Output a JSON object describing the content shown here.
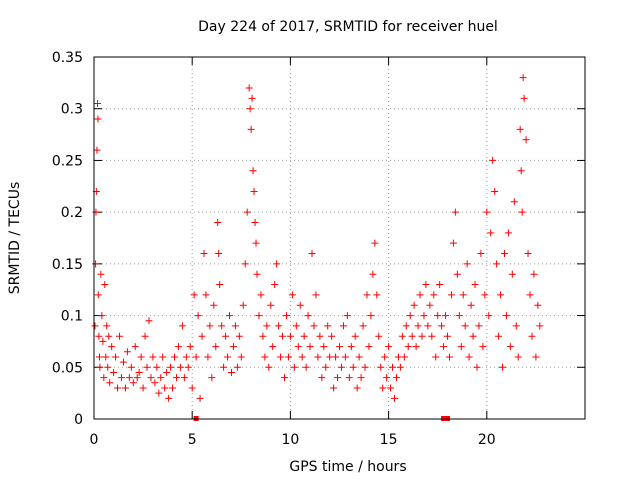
{
  "chart_data": {
    "type": "scatter",
    "title": "Day 224 of 2017, SRMTID for receiver huel",
    "xlabel": "GPS time / hours",
    "ylabel": "SRMTID / TECUs",
    "xlim": [
      0,
      25
    ],
    "ylim": [
      0,
      0.35
    ],
    "x_ticks": [
      0,
      5,
      10,
      15,
      20
    ],
    "x_tick_labels": [
      "0",
      "5",
      "10",
      "15",
      "20"
    ],
    "y_ticks": [
      0,
      0.05,
      0.1,
      0.15,
      0.2,
      0.25,
      0.3,
      0.35
    ],
    "y_tick_labels": [
      "0",
      "0.05",
      "0.1",
      "0.15",
      "0.2",
      "0.25",
      "0.3",
      "0.35"
    ],
    "grid": true,
    "marker": "+",
    "color": "#ff0000",
    "series": [
      {
        "name": "SRMTID",
        "points": [
          [
            0.05,
            0.09
          ],
          [
            0.08,
            0.15
          ],
          [
            0.1,
            0.2
          ],
          [
            0.12,
            0.22
          ],
          [
            0.15,
            0.26
          ],
          [
            0.18,
            0.305
          ],
          [
            0.2,
            0.29
          ],
          [
            0.22,
            0.12
          ],
          [
            0.25,
            0.08
          ],
          [
            0.28,
            0.06
          ],
          [
            0.3,
            0.05
          ],
          [
            0.35,
            0.14
          ],
          [
            0.4,
            0.1
          ],
          [
            0.45,
            0.075
          ],
          [
            0.5,
            0.04
          ],
          [
            0.55,
            0.13
          ],
          [
            0.6,
            0.06
          ],
          [
            0.65,
            0.09
          ],
          [
            0.7,
            0.05
          ],
          [
            0.75,
            0.08
          ],
          [
            0.8,
            0.035
          ],
          [
            0.9,
            0.07
          ],
          [
            1.0,
            0.045
          ],
          [
            1.1,
            0.06
          ],
          [
            1.2,
            0.03
          ],
          [
            1.3,
            0.08
          ],
          [
            1.4,
            0.04
          ],
          [
            1.5,
            0.055
          ],
          [
            1.6,
            0.03
          ],
          [
            1.7,
            0.065
          ],
          [
            1.8,
            0.04
          ],
          [
            1.9,
            0.05
          ],
          [
            2.0,
            0.035
          ],
          [
            2.1,
            0.07
          ],
          [
            2.2,
            0.04
          ],
          [
            2.3,
            0.045
          ],
          [
            2.4,
            0.06
          ],
          [
            2.5,
            0.03
          ],
          [
            2.6,
            0.08
          ],
          [
            2.7,
            0.05
          ],
          [
            2.8,
            0.095
          ],
          [
            2.9,
            0.04
          ],
          [
            3.0,
            0.06
          ],
          [
            3.1,
            0.035
          ],
          [
            3.2,
            0.05
          ],
          [
            3.3,
            0.025
          ],
          [
            3.4,
            0.04
          ],
          [
            3.5,
            0.06
          ],
          [
            3.6,
            0.03
          ],
          [
            3.7,
            0.045
          ],
          [
            3.8,
            0.02
          ],
          [
            3.9,
            0.05
          ],
          [
            4.0,
            0.03
          ],
          [
            4.1,
            0.06
          ],
          [
            4.2,
            0.04
          ],
          [
            4.3,
            0.07
          ],
          [
            4.4,
            0.05
          ],
          [
            4.5,
            0.09
          ],
          [
            4.6,
            0.04
          ],
          [
            4.7,
            0.06
          ],
          [
            4.8,
            0.05
          ],
          [
            4.9,
            0.07
          ],
          [
            5.0,
            0.03
          ],
          [
            5.1,
            0.12
          ],
          [
            5.2,
            0.06
          ],
          [
            5.3,
            0.1
          ],
          [
            5.4,
            0.02
          ],
          [
            5.5,
            0.08
          ],
          [
            5.6,
            0.16
          ],
          [
            5.7,
            0.12
          ],
          [
            5.8,
            0.06
          ],
          [
            5.9,
            0.09
          ],
          [
            6.0,
            0.04
          ],
          [
            6.1,
            0.11
          ],
          [
            6.2,
            0.07
          ],
          [
            6.3,
            0.19
          ],
          [
            6.35,
            0.16
          ],
          [
            6.4,
            0.13
          ],
          [
            6.5,
            0.09
          ],
          [
            6.6,
            0.05
          ],
          [
            6.7,
            0.08
          ],
          [
            6.8,
            0.06
          ],
          [
            6.9,
            0.1
          ],
          [
            7.0,
            0.045
          ],
          [
            7.1,
            0.07
          ],
          [
            7.2,
            0.09
          ],
          [
            7.3,
            0.05
          ],
          [
            7.4,
            0.08
          ],
          [
            7.5,
            0.06
          ],
          [
            7.6,
            0.11
          ],
          [
            7.7,
            0.15
          ],
          [
            7.8,
            0.2
          ],
          [
            7.9,
            0.32
          ],
          [
            7.95,
            0.3
          ],
          [
            8.0,
            0.28
          ],
          [
            8.05,
            0.31
          ],
          [
            8.1,
            0.24
          ],
          [
            8.15,
            0.22
          ],
          [
            8.2,
            0.19
          ],
          [
            8.25,
            0.17
          ],
          [
            8.3,
            0.14
          ],
          [
            8.4,
            0.1
          ],
          [
            8.5,
            0.12
          ],
          [
            8.6,
            0.08
          ],
          [
            8.7,
            0.06
          ],
          [
            8.8,
            0.09
          ],
          [
            8.9,
            0.05
          ],
          [
            9.0,
            0.11
          ],
          [
            9.1,
            0.07
          ],
          [
            9.2,
            0.13
          ],
          [
            9.3,
            0.15
          ],
          [
            9.4,
            0.09
          ],
          [
            9.5,
            0.06
          ],
          [
            9.6,
            0.08
          ],
          [
            9.7,
            0.04
          ],
          [
            9.8,
            0.1
          ],
          [
            9.9,
            0.06
          ],
          [
            10.0,
            0.08
          ],
          [
            10.1,
            0.12
          ],
          [
            10.2,
            0.05
          ],
          [
            10.3,
            0.09
          ],
          [
            10.4,
            0.07
          ],
          [
            10.5,
            0.11
          ],
          [
            10.6,
            0.06
          ],
          [
            10.7,
            0.08
          ],
          [
            10.8,
            0.05
          ],
          [
            10.9,
            0.1
          ],
          [
            11.0,
            0.07
          ],
          [
            11.1,
            0.16
          ],
          [
            11.2,
            0.09
          ],
          [
            11.3,
            0.12
          ],
          [
            11.4,
            0.06
          ],
          [
            11.5,
            0.08
          ],
          [
            11.6,
            0.04
          ],
          [
            11.7,
            0.07
          ],
          [
            11.8,
            0.05
          ],
          [
            11.9,
            0.09
          ],
          [
            12.0,
            0.06
          ],
          [
            12.1,
            0.08
          ],
          [
            12.2,
            0.03
          ],
          [
            12.3,
            0.06
          ],
          [
            12.4,
            0.04
          ],
          [
            12.5,
            0.07
          ],
          [
            12.6,
            0.05
          ],
          [
            12.7,
            0.09
          ],
          [
            12.8,
            0.06
          ],
          [
            12.9,
            0.1
          ],
          [
            13.0,
            0.04
          ],
          [
            13.1,
            0.07
          ],
          [
            13.2,
            0.05
          ],
          [
            13.3,
            0.08
          ],
          [
            13.4,
            0.03
          ],
          [
            13.5,
            0.06
          ],
          [
            13.6,
            0.04
          ],
          [
            13.7,
            0.09
          ],
          [
            13.8,
            0.05
          ],
          [
            13.9,
            0.12
          ],
          [
            14.0,
            0.07
          ],
          [
            14.1,
            0.1
          ],
          [
            14.2,
            0.14
          ],
          [
            14.3,
            0.17
          ],
          [
            14.4,
            0.12
          ],
          [
            14.5,
            0.08
          ],
          [
            14.6,
            0.05
          ],
          [
            14.7,
            0.03
          ],
          [
            14.8,
            0.06
          ],
          [
            14.9,
            0.04
          ],
          [
            15.0,
            0.07
          ],
          [
            15.1,
            0.03
          ],
          [
            15.2,
            0.05
          ],
          [
            15.3,
            0.02
          ],
          [
            15.4,
            0.04
          ],
          [
            15.5,
            0.06
          ],
          [
            15.6,
            0.05
          ],
          [
            15.7,
            0.08
          ],
          [
            15.8,
            0.06
          ],
          [
            15.9,
            0.09
          ],
          [
            16.0,
            0.07
          ],
          [
            16.1,
            0.1
          ],
          [
            16.2,
            0.08
          ],
          [
            16.3,
            0.11
          ],
          [
            16.4,
            0.07
          ],
          [
            16.5,
            0.09
          ],
          [
            16.6,
            0.12
          ],
          [
            16.7,
            0.08
          ],
          [
            16.8,
            0.1
          ],
          [
            16.9,
            0.13
          ],
          [
            17.0,
            0.09
          ],
          [
            17.1,
            0.11
          ],
          [
            17.2,
            0.08
          ],
          [
            17.3,
            0.12
          ],
          [
            17.4,
            0.06
          ],
          [
            17.5,
            0.1
          ],
          [
            17.6,
            0.13
          ],
          [
            17.7,
            0.09
          ],
          [
            17.8,
            0.07
          ],
          [
            17.9,
            0.1
          ],
          [
            18.0,
            0.08
          ],
          [
            18.1,
            0.06
          ],
          [
            18.2,
            0.12
          ],
          [
            18.3,
            0.17
          ],
          [
            18.4,
            0.2
          ],
          [
            18.5,
            0.14
          ],
          [
            18.6,
            0.1
          ],
          [
            18.7,
            0.07
          ],
          [
            18.8,
            0.12
          ],
          [
            18.9,
            0.09
          ],
          [
            19.0,
            0.15
          ],
          [
            19.1,
            0.06
          ],
          [
            19.2,
            0.11
          ],
          [
            19.3,
            0.08
          ],
          [
            19.4,
            0.13
          ],
          [
            19.5,
            0.05
          ],
          [
            19.6,
            0.09
          ],
          [
            19.7,
            0.16
          ],
          [
            19.8,
            0.07
          ],
          [
            19.9,
            0.12
          ],
          [
            20.0,
            0.2
          ],
          [
            20.1,
            0.1
          ],
          [
            20.2,
            0.18
          ],
          [
            20.3,
            0.25
          ],
          [
            20.4,
            0.22
          ],
          [
            20.5,
            0.15
          ],
          [
            20.6,
            0.08
          ],
          [
            20.7,
            0.12
          ],
          [
            20.8,
            0.05
          ],
          [
            20.9,
            0.16
          ],
          [
            21.0,
            0.1
          ],
          [
            21.1,
            0.18
          ],
          [
            21.2,
            0.07
          ],
          [
            21.3,
            0.14
          ],
          [
            21.4,
            0.21
          ],
          [
            21.5,
            0.09
          ],
          [
            21.6,
            0.06
          ],
          [
            21.7,
            0.28
          ],
          [
            21.75,
            0.24
          ],
          [
            21.8,
            0.2
          ],
          [
            21.85,
            0.33
          ],
          [
            21.9,
            0.31
          ],
          [
            22.0,
            0.27
          ],
          [
            22.1,
            0.16
          ],
          [
            22.2,
            0.12
          ],
          [
            22.3,
            0.08
          ],
          [
            22.4,
            0.14
          ],
          [
            22.5,
            0.06
          ],
          [
            22.6,
            0.11
          ],
          [
            22.7,
            0.09
          ]
        ]
      }
    ],
    "zero_markers_x": [
      5.2,
      17.8,
      18.0
    ]
  }
}
